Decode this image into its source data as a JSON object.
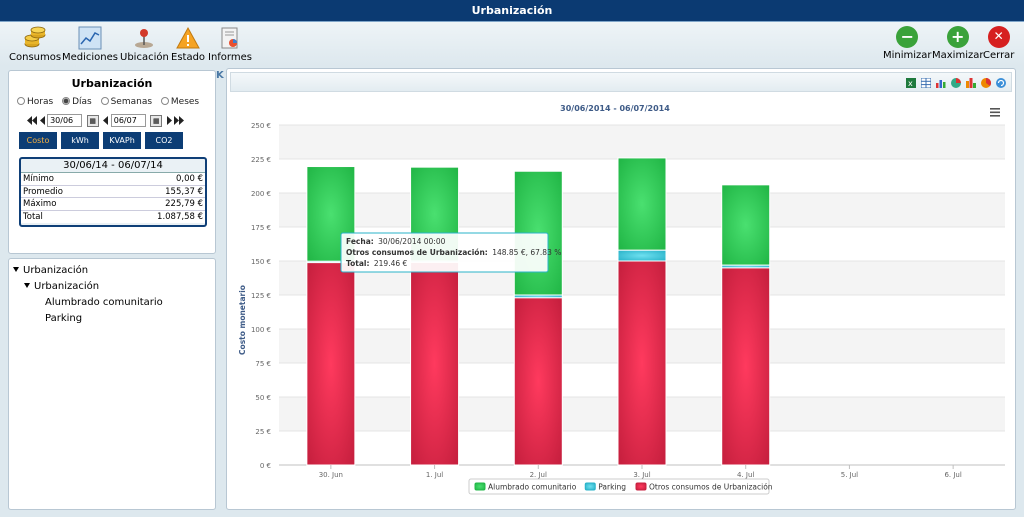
{
  "window": {
    "title": "Urbanización"
  },
  "toolbar": {
    "items": [
      {
        "label": "Consumos",
        "icon": "coins-icon"
      },
      {
        "label": "Mediciones",
        "icon": "line-chart-icon"
      },
      {
        "label": "Ubicación",
        "icon": "map-pin-icon"
      },
      {
        "label": "Estado",
        "icon": "warning-icon"
      },
      {
        "label": "Informes",
        "icon": "report-icon"
      }
    ],
    "right": [
      {
        "label": "Minimizar",
        "icon": "minus-circle-icon",
        "glyph": "−",
        "color": "#3aa23a"
      },
      {
        "label": "Maximizar",
        "icon": "plus-circle-icon",
        "glyph": "+",
        "color": "#3aa23a"
      },
      {
        "label": "Cerrar",
        "icon": "close-circle-icon",
        "glyph": "✕",
        "color": "#d62020"
      }
    ]
  },
  "left_panel": {
    "title": "Urbanización",
    "periods": [
      {
        "label": "Horas",
        "selected": false
      },
      {
        "label": "Días",
        "selected": true
      },
      {
        "label": "Semanas",
        "selected": false
      },
      {
        "label": "Meses",
        "selected": false
      }
    ],
    "date_from": "30/06",
    "date_to": "06/07",
    "units": [
      {
        "label": "Costo",
        "active": true
      },
      {
        "label": "kWh",
        "active": false
      },
      {
        "label": "KVAPh",
        "active": false
      },
      {
        "label": "CO2",
        "active": false
      }
    ],
    "stats": {
      "range": "30/06/14 - 06/07/14",
      "rows": [
        {
          "label": "Mínimo",
          "value": "0,00 €"
        },
        {
          "label": "Promedio",
          "value": "155,37 €"
        },
        {
          "label": "Máximo",
          "value": "225,79 €"
        },
        {
          "label": "Total",
          "value": "1.087,58 €"
        }
      ]
    }
  },
  "tree": {
    "root": "Urbanización",
    "child": "Urbanización",
    "leaves": [
      "Alumbrado comunitario",
      "Parking"
    ]
  },
  "chart_data": {
    "type": "bar",
    "stacked": true,
    "title": "30/06/2014 - 06/07/2014",
    "ylabel": "Costo monetario",
    "ylim": [
      0,
      250
    ],
    "yticks": [
      0,
      25,
      50,
      75,
      100,
      125,
      150,
      175,
      200,
      225,
      250
    ],
    "ytick_labels": [
      "0 €",
      "25 €",
      "50 €",
      "75 €",
      "100 €",
      "125 €",
      "150 €",
      "175 €",
      "200 €",
      "225 €",
      "250 €"
    ],
    "categories": [
      "30. Jun",
      "1. Jul",
      "2. Jul",
      "3. Jul",
      "4. Jul",
      "5. Jul",
      "6. Jul"
    ],
    "series": [
      {
        "name": "Otros consumos de Urbanización",
        "color": "#c8203f",
        "values": [
          148.85,
          149,
          123,
          150,
          145,
          0,
          0
        ]
      },
      {
        "name": "Parking",
        "color": "#2ab3c9",
        "values": [
          1,
          1,
          2,
          8,
          2,
          0,
          0
        ]
      },
      {
        "name": "Alumbrado comunitario",
        "color": "#23b848",
        "values": [
          69.61,
          69,
          91,
          67.79,
          59,
          0,
          0
        ]
      }
    ],
    "legend_order": [
      "Alumbrado comunitario",
      "Parking",
      "Otros consumos de Urbanización"
    ],
    "legend_position": "bottom",
    "tooltip": {
      "fecha_label": "Fecha:",
      "fecha_value": "30/06/2014 00:00",
      "series_label": "Otros consumos de Urbanización:",
      "series_value": "148.85 €, 67.83 %",
      "total_label": "Total:",
      "total_value": "219.46 €"
    }
  },
  "chart_icons": [
    "excel-icon",
    "table-icon",
    "bar-chart-icon",
    "pie-chart-icon",
    "column-chart-icon",
    "pie-chart-alt-icon",
    "refresh-icon"
  ]
}
